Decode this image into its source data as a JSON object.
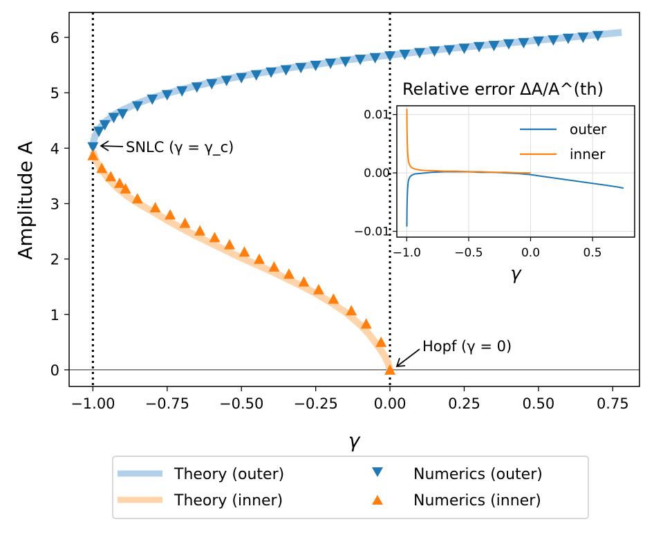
{
  "chart_data": [
    {
      "type": "line",
      "xlabel": "γ",
      "ylabel": "Amplitude A",
      "xlim": [
        -1.08,
        0.84
      ],
      "ylim": [
        -0.3,
        6.45
      ],
      "xticks": [
        -1.0,
        -0.75,
        -0.5,
        -0.25,
        0.0,
        0.25,
        0.5,
        0.75
      ],
      "xtick_labels": [
        "−1.00",
        "−0.75",
        "−0.50",
        "−0.25",
        "0.00",
        "0.25",
        "0.50",
        "0.75"
      ],
      "yticks": [
        0,
        1,
        2,
        3,
        4,
        5,
        6
      ],
      "ytick_labels": [
        "0",
        "1",
        "2",
        "3",
        "4",
        "5",
        "6"
      ],
      "series": [
        {
          "name": "Theory (outer)",
          "kind": "line",
          "color": "#b3d0ea",
          "x": [
            -1.0,
            -0.998,
            -0.995,
            -0.99,
            -0.98,
            -0.96,
            -0.93,
            -0.9,
            -0.85,
            -0.8,
            -0.75,
            -0.7,
            -0.65,
            -0.6,
            -0.55,
            -0.5,
            -0.45,
            -0.4,
            -0.35,
            -0.3,
            -0.25,
            -0.2,
            -0.15,
            -0.1,
            -0.05,
            0.0,
            0.1,
            0.2,
            0.3,
            0.4,
            0.5,
            0.6,
            0.7,
            0.78
          ],
          "y": [
            4.0,
            4.11,
            4.18,
            4.25,
            4.35,
            4.47,
            4.6,
            4.69,
            4.81,
            4.91,
            4.99,
            5.06,
            5.13,
            5.19,
            5.25,
            5.3,
            5.35,
            5.39,
            5.44,
            5.48,
            5.51,
            5.55,
            5.59,
            5.62,
            5.65,
            5.68,
            5.74,
            5.8,
            5.85,
            5.9,
            5.95,
            6.0,
            6.05,
            6.09
          ]
        },
        {
          "name": "Theory (inner)",
          "kind": "line",
          "color": "#ffd4ab",
          "x": [
            -1.0,
            -0.99,
            -0.97,
            -0.95,
            -0.92,
            -0.88,
            -0.84,
            -0.8,
            -0.75,
            -0.7,
            -0.65,
            -0.6,
            -0.55,
            -0.5,
            -0.45,
            -0.4,
            -0.35,
            -0.3,
            -0.25,
            -0.2,
            -0.15,
            -0.1,
            -0.07,
            -0.05,
            -0.03,
            -0.015,
            -0.005,
            0.0
          ],
          "y": [
            3.95,
            3.78,
            3.6,
            3.46,
            3.29,
            3.12,
            2.98,
            2.86,
            2.7,
            2.55,
            2.41,
            2.28,
            2.15,
            2.02,
            1.9,
            1.78,
            1.65,
            1.52,
            1.38,
            1.22,
            1.04,
            0.81,
            0.64,
            0.5,
            0.35,
            0.22,
            0.1,
            0.0
          ]
        },
        {
          "name": "Numerics (outer)",
          "kind": "marker",
          "marker": "triangle-down",
          "color": "#1f77b4",
          "x": [
            -1.0,
            -0.98,
            -0.96,
            -0.93,
            -0.9,
            -0.85,
            -0.8,
            -0.75,
            -0.7,
            -0.65,
            -0.6,
            -0.55,
            -0.5,
            -0.45,
            -0.4,
            -0.35,
            -0.3,
            -0.25,
            -0.2,
            -0.15,
            -0.1,
            -0.05,
            0.0,
            0.05,
            0.1,
            0.15,
            0.2,
            0.25,
            0.3,
            0.35,
            0.4,
            0.45,
            0.5,
            0.55,
            0.6,
            0.65,
            0.7
          ],
          "y": [
            4.02,
            4.3,
            4.42,
            4.55,
            4.62,
            4.76,
            4.88,
            4.96,
            5.03,
            5.1,
            5.16,
            5.22,
            5.27,
            5.32,
            5.37,
            5.41,
            5.45,
            5.49,
            5.53,
            5.56,
            5.6,
            5.63,
            5.66,
            5.69,
            5.72,
            5.75,
            5.77,
            5.8,
            5.83,
            5.85,
            5.88,
            5.9,
            5.93,
            5.95,
            5.98,
            6.0,
            6.03
          ]
        },
        {
          "name": "Numerics (inner)",
          "kind": "marker",
          "marker": "triangle-up",
          "color": "#ff7f0e",
          "x": [
            -1.0,
            -0.97,
            -0.94,
            -0.91,
            -0.89,
            -0.85,
            -0.79,
            -0.74,
            -0.69,
            -0.64,
            -0.59,
            -0.54,
            -0.49,
            -0.44,
            -0.39,
            -0.34,
            -0.29,
            -0.24,
            -0.19,
            -0.13,
            -0.08,
            -0.03,
            0.0
          ],
          "y": [
            3.87,
            3.64,
            3.49,
            3.37,
            3.27,
            3.09,
            2.93,
            2.8,
            2.65,
            2.51,
            2.39,
            2.26,
            2.13,
            2.0,
            1.86,
            1.73,
            1.59,
            1.45,
            1.28,
            1.07,
            0.83,
            0.5,
            0.0
          ]
        }
      ],
      "vlines": [
        -1.0,
        0.0
      ],
      "hline": 0,
      "annotations": [
        {
          "text": "SNLC (γ = γ_c)",
          "x": -1.0,
          "y": 4.02
        },
        {
          "text": "Hopf (γ = 0)",
          "x": 0.0,
          "y": 0.0
        }
      ],
      "legend": {
        "position": "bottom",
        "entries": [
          "Theory (outer)",
          "Numerics (outer)",
          "Theory (inner)",
          "Numerics (inner)"
        ]
      }
    },
    {
      "type": "line",
      "title": "Relative error ΔA/A^(th)",
      "xlabel": "γ",
      "ylabel": "",
      "xlim": [
        -1.08,
        0.84
      ],
      "ylim": [
        -0.011,
        0.0115
      ],
      "xticks": [
        -1.0,
        -0.5,
        0.0,
        0.5
      ],
      "xtick_labels": [
        "−1.0",
        "−0.5",
        "0.0",
        "0.5"
      ],
      "yticks": [
        -0.01,
        0.0,
        0.01
      ],
      "ytick_labels": [
        "−0.01",
        "0.00",
        "0.01"
      ],
      "grid": true,
      "series": [
        {
          "name": "outer",
          "color": "#1f77b4",
          "x": [
            -0.999,
            -0.998,
            -0.996,
            -0.993,
            -0.99,
            -0.985,
            -0.975,
            -0.96,
            -0.94,
            -0.9,
            -0.85,
            -0.8,
            -0.7,
            -0.6,
            -0.5,
            -0.4,
            -0.3,
            -0.2,
            -0.1,
            0.0,
            0.1,
            0.2,
            0.3,
            0.4,
            0.5,
            0.6,
            0.7,
            0.75
          ],
          "y": [
            -0.0092,
            -0.0062,
            -0.0042,
            -0.0028,
            -0.0019,
            -0.0012,
            -0.0007,
            -0.0004,
            -0.0002,
            -0.0001,
            0.0,
            0.0001,
            0.0002,
            0.0002,
            0.0002,
            0.0001,
            0.0001,
            0.0,
            -0.0001,
            -0.0003,
            -0.0006,
            -0.0009,
            -0.0012,
            -0.0015,
            -0.0018,
            -0.0021,
            -0.0024,
            -0.0026
          ]
        },
        {
          "name": "inner",
          "color": "#ff7f0e",
          "x": [
            -0.999,
            -0.998,
            -0.996,
            -0.993,
            -0.99,
            -0.985,
            -0.975,
            -0.96,
            -0.94,
            -0.9,
            -0.85,
            -0.8,
            -0.7,
            -0.6,
            -0.5,
            -0.4,
            -0.3,
            -0.2,
            -0.1,
            0.0
          ],
          "y": [
            0.011,
            0.0078,
            0.0055,
            0.0038,
            0.0028,
            0.0019,
            0.0013,
            0.0009,
            0.0007,
            0.0005,
            0.0004,
            0.0004,
            0.0003,
            0.0003,
            0.0002,
            0.0002,
            0.0001,
            0.0001,
            0.0,
            0.0
          ]
        }
      ],
      "legend": {
        "position": "top-right",
        "entries": [
          "outer",
          "inner"
        ]
      }
    }
  ]
}
